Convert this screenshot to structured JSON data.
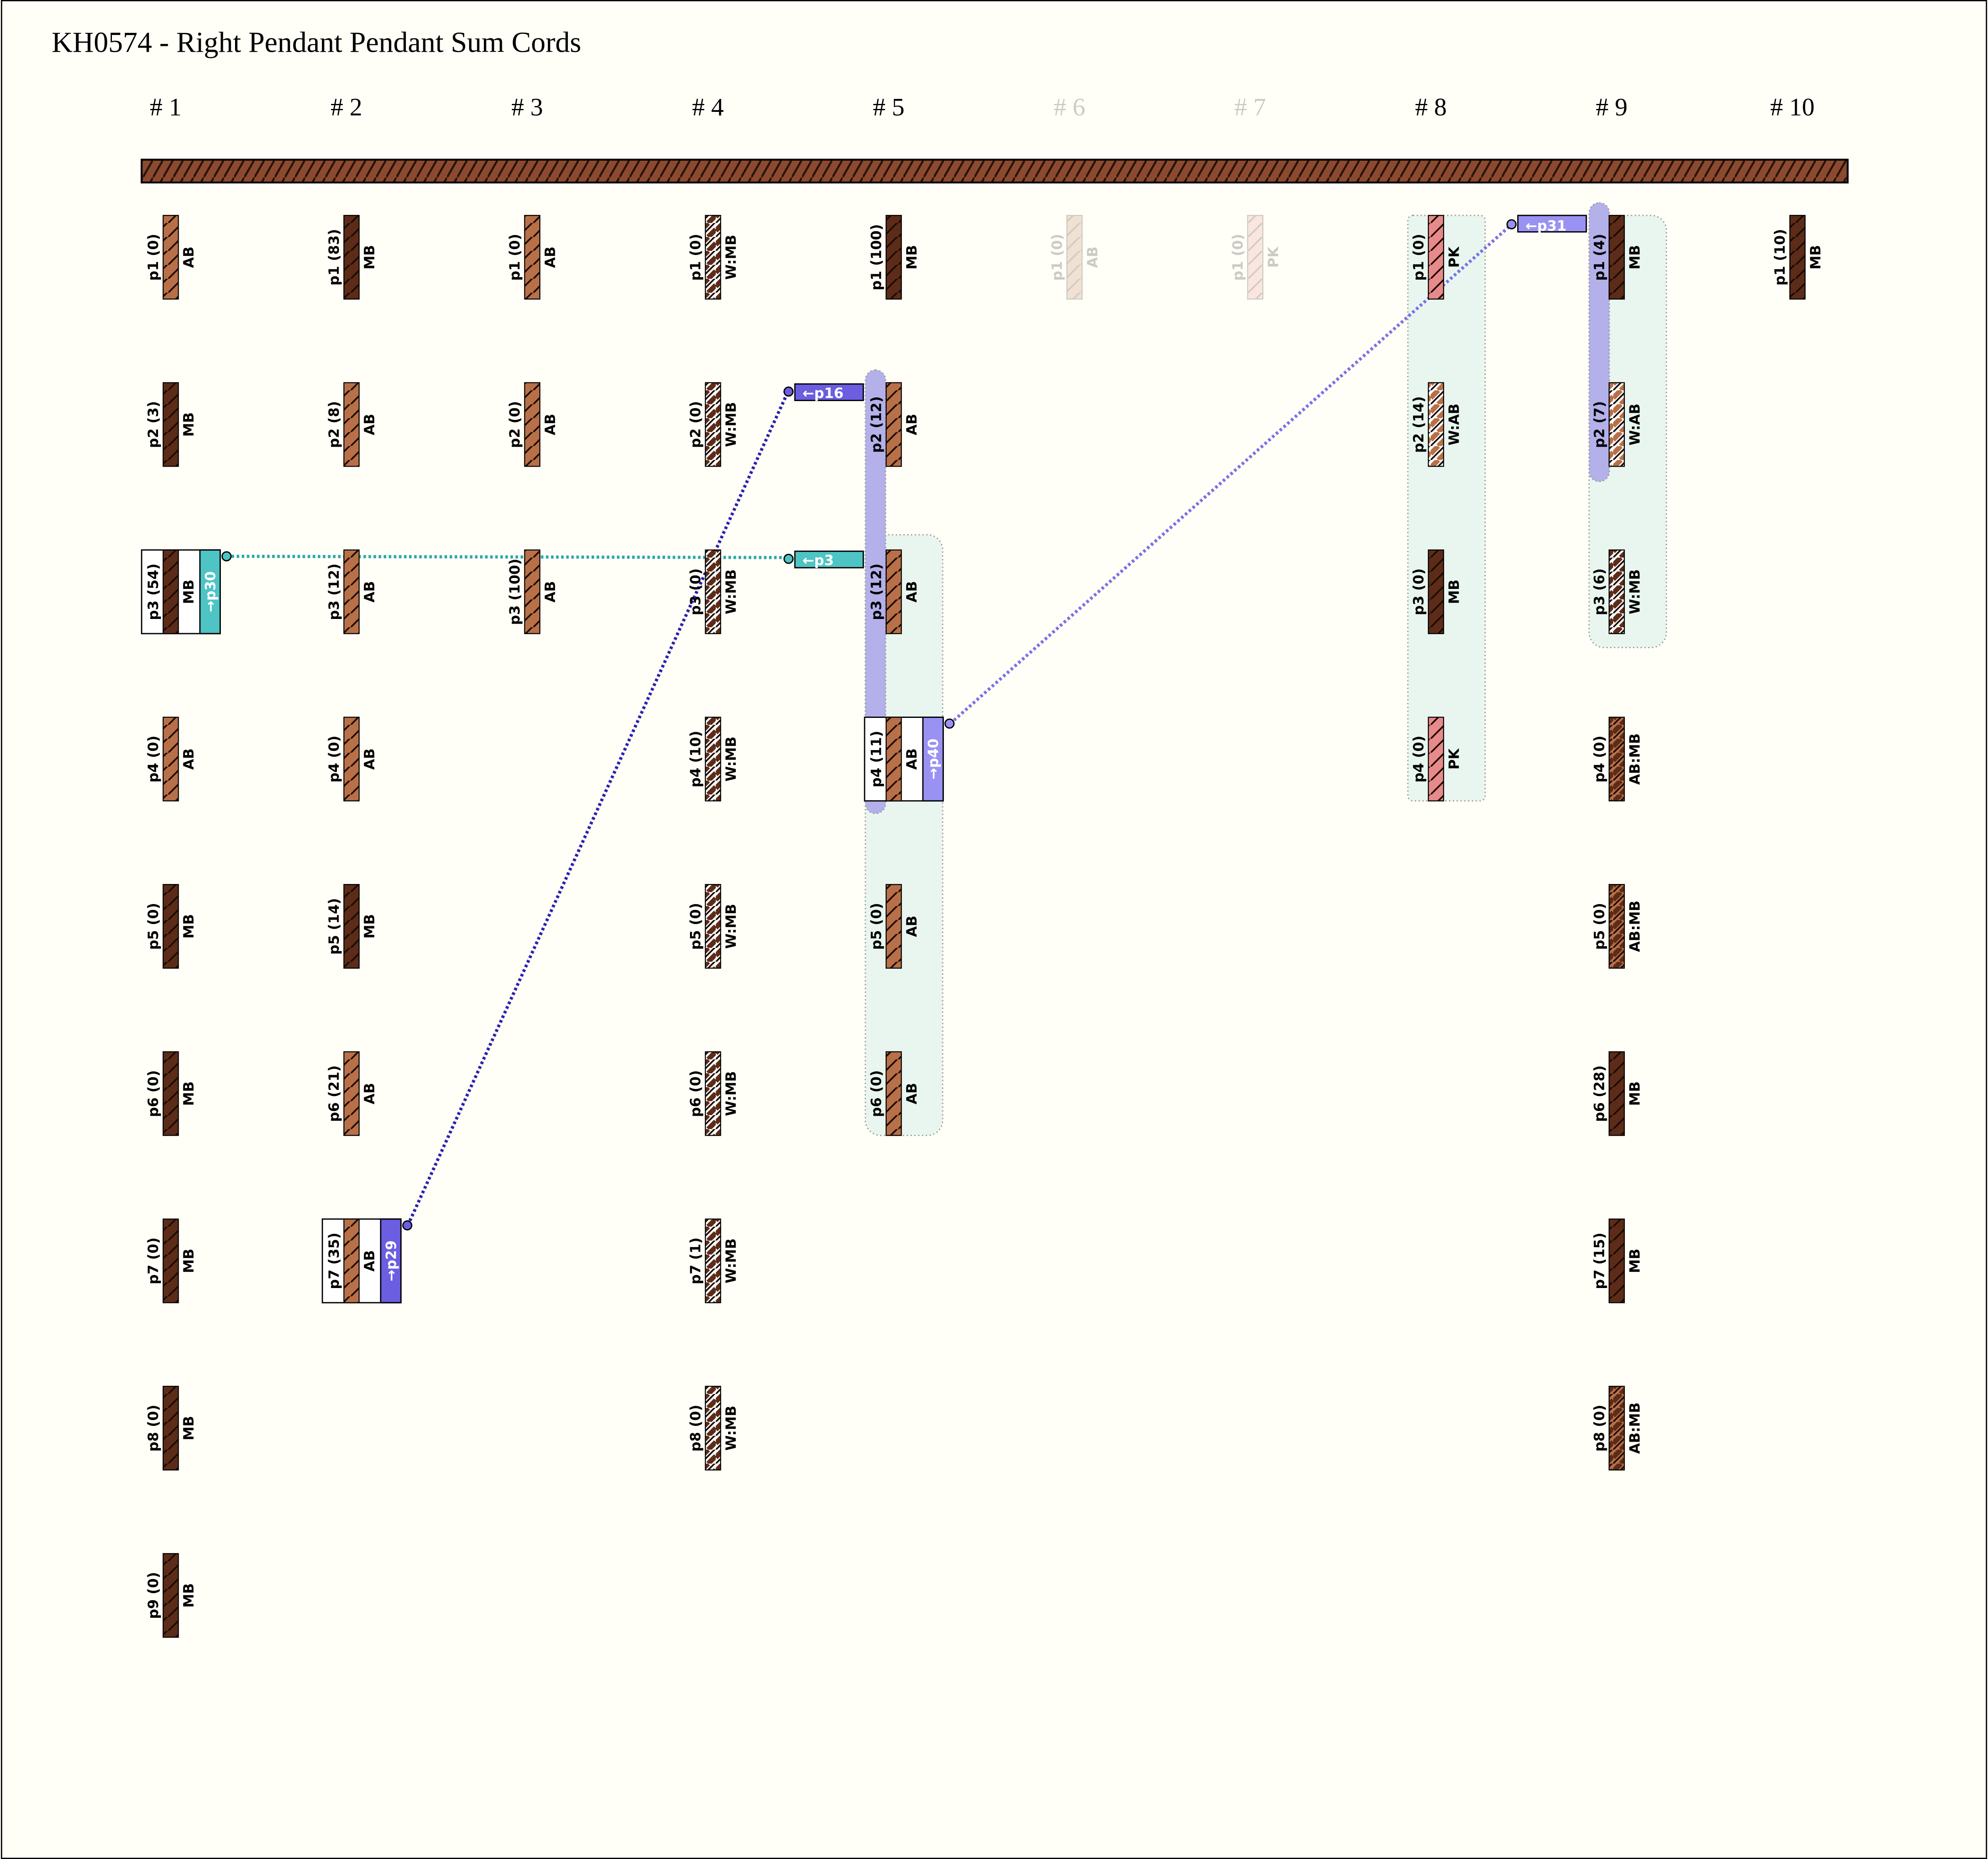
{
  "title": "KH0574 - Right Pendant Pendant Sum Cords",
  "groups": [
    {
      "label": "# 1",
      "cords": [
        {
          "label": "p1 (0)",
          "color": "AB"
        },
        {
          "label": "p2 (3)",
          "color": "MB"
        },
        {
          "label": "p3 (54)",
          "color": "MB",
          "sum": "→p30"
        },
        {
          "label": "p4 (0)",
          "color": "AB"
        },
        {
          "label": "p5 (0)",
          "color": "MB"
        },
        {
          "label": "p6 (0)",
          "color": "MB"
        },
        {
          "label": "p7 (0)",
          "color": "MB"
        },
        {
          "label": "p8 (0)",
          "color": "MB"
        },
        {
          "label": "p9 (0)",
          "color": "MB"
        }
      ]
    },
    {
      "label": "# 2",
      "cords": [
        {
          "label": "p1 (83)",
          "color": "MB"
        },
        {
          "label": "p2 (8)",
          "color": "AB"
        },
        {
          "label": "p3 (12)",
          "color": "AB"
        },
        {
          "label": "p4 (0)",
          "color": "AB"
        },
        {
          "label": "p5 (14)",
          "color": "MB"
        },
        {
          "label": "p6 (21)",
          "color": "AB"
        },
        {
          "label": "p7 (35)",
          "color": "AB",
          "sum": "→p29"
        }
      ]
    },
    {
      "label": "# 3",
      "cords": [
        {
          "label": "p1 (0)",
          "color": "AB"
        },
        {
          "label": "p2 (0)",
          "color": "AB"
        },
        {
          "label": "p3 (100)",
          "color": "AB"
        }
      ]
    },
    {
      "label": "# 4",
      "cords": [
        {
          "label": "p1 (0)",
          "color": "W:MB"
        },
        {
          "label": "p2 (0)",
          "color": "W:MB"
        },
        {
          "label": "p3 (0)",
          "color": "W:MB"
        },
        {
          "label": "p4 (10)",
          "color": "W:MB"
        },
        {
          "label": "p5 (0)",
          "color": "W:MB"
        },
        {
          "label": "p6 (0)",
          "color": "W:MB"
        },
        {
          "label": "p7 (1)",
          "color": "W:MB"
        },
        {
          "label": "p8 (0)",
          "color": "W:MB"
        }
      ]
    },
    {
      "label": "# 5",
      "cords": [
        {
          "label": "p1 (100)",
          "color": "MB"
        },
        {
          "label": "p2 (12)",
          "color": "AB",
          "incoming": "←p16"
        },
        {
          "label": "p3 (12)",
          "color": "AB",
          "incoming": "←p3"
        },
        {
          "label": "p4 (11)",
          "color": "AB",
          "sum": "→p40"
        },
        {
          "label": "p5 (0)",
          "color": "AB"
        },
        {
          "label": "p6 (0)",
          "color": "AB"
        }
      ]
    },
    {
      "label": "# 6",
      "cords": [
        {
          "label": "p1 (0)",
          "color": "AB"
        }
      ]
    },
    {
      "label": "# 7",
      "cords": [
        {
          "label": "p1 (0)",
          "color": "PK"
        }
      ]
    },
    {
      "label": "# 8",
      "cords": [
        {
          "label": "p1 (0)",
          "color": "PK"
        },
        {
          "label": "p2 (14)",
          "color": "W:AB"
        },
        {
          "label": "p3 (0)",
          "color": "MB"
        },
        {
          "label": "p4 (0)",
          "color": "PK"
        }
      ]
    },
    {
      "label": "# 9",
      "cords": [
        {
          "label": "p1 (4)",
          "color": "MB",
          "incoming": "←p31"
        },
        {
          "label": "p2 (7)",
          "color": "W:AB"
        },
        {
          "label": "p3 (6)",
          "color": "W:MB"
        },
        {
          "label": "p4 (0)",
          "color": "AB:MB"
        },
        {
          "label": "p5 (0)",
          "color": "AB:MB"
        },
        {
          "label": "p6 (28)",
          "color": "MB"
        },
        {
          "label": "p7 (15)",
          "color": "MB"
        },
        {
          "label": "p8 (0)",
          "color": "AB:MB"
        }
      ]
    },
    {
      "label": "# 10",
      "cords": [
        {
          "label": "p1 (10)",
          "color": "MB"
        }
      ]
    }
  ]
}
